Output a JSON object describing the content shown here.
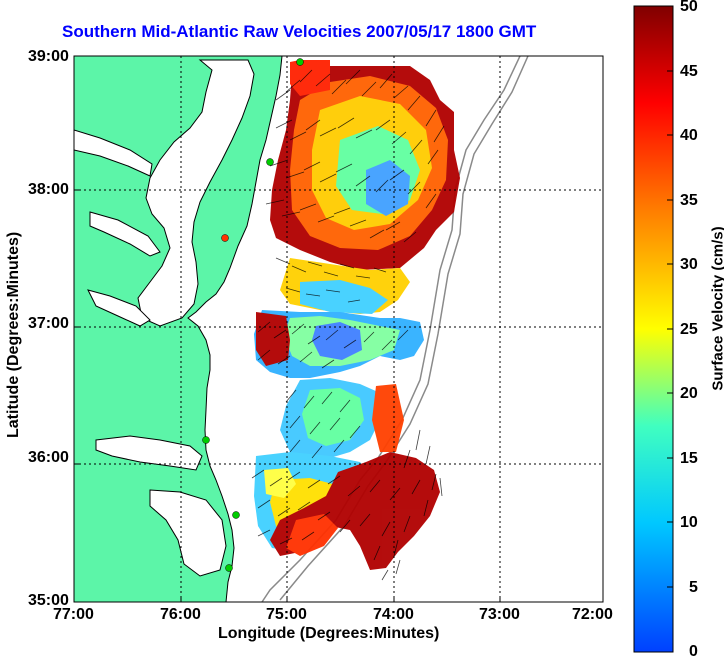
{
  "title": "Southern Mid-Atlantic Raw Velocities 2007/05/17 1800 GMT",
  "xlabel": "Longitude (Degrees:Minutes)",
  "ylabel": "Latitude (Degrees:Minutes)",
  "colorbar_label": "Surface Velocity (cm/s)",
  "x_ticks": [
    "77:00",
    "76:00",
    "75:00",
    "74:00",
    "73:00",
    "72:00"
  ],
  "y_ticks": [
    "39:00",
    "38:00",
    "37:00",
    "36:00",
    "35:00"
  ],
  "colorbar_ticks": [
    "50",
    "45",
    "40",
    "35",
    "30",
    "25",
    "20",
    "15",
    "10",
    "5",
    "0"
  ],
  "colors": {
    "land": "#5cf5a8",
    "title": "#0000ff",
    "station": "#00cc00",
    "station_alt": "#ff3300",
    "colormap": [
      "#0040ff",
      "#00c8ff",
      "#40ffc0",
      "#ffff00",
      "#ff8000",
      "#ff0000",
      "#800000"
    ]
  },
  "chart_data": {
    "type": "heatmap",
    "xlim": [
      -77,
      -72
    ],
    "ylim": [
      35,
      39
    ],
    "clim": [
      0,
      50
    ],
    "grid": true
  }
}
